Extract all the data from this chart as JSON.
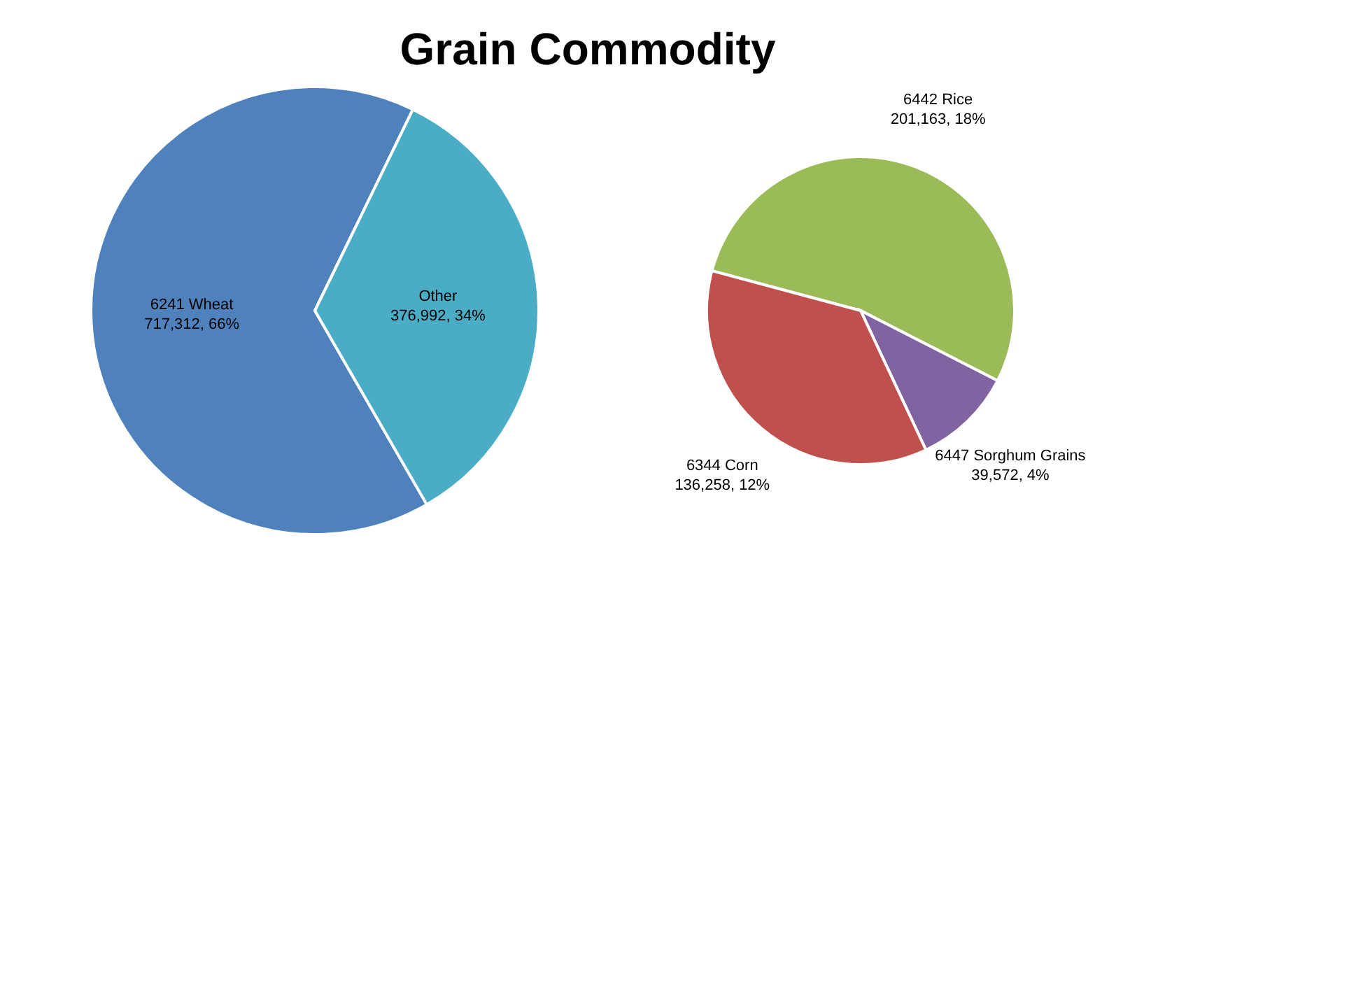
{
  "chart_data": [
    {
      "type": "pie",
      "title": "Grain Commodity",
      "categories": [
        "6241 Wheat",
        "Other"
      ],
      "values": [
        717312,
        376992
      ],
      "colors": [
        "#4f81bd",
        "#4bacc6"
      ],
      "value_labels": [
        "717,312, 66%",
        "376,992, 34%"
      ],
      "legend": false
    },
    {
      "type": "pie",
      "categories": [
        "6442 Rice",
        "6447 Sorghum Grains",
        "6344 Corn"
      ],
      "values": [
        201163,
        39572,
        136258
      ],
      "colors": [
        "#9bbb59",
        "#8064a2",
        "#c0504d"
      ],
      "value_labels": [
        "201,163, 18%",
        "39,572, 4%",
        "136,258, 12%"
      ],
      "legend": false
    }
  ]
}
